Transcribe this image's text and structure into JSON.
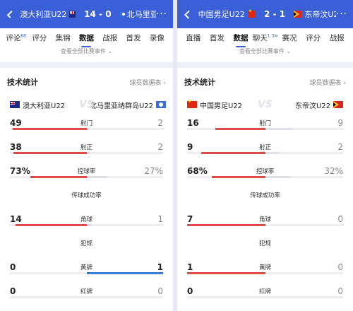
{
  "panels": [
    {
      "team_a": "澳大利亚U22",
      "team_b": "北马里亚纳...",
      "score": "14 - 0",
      "tabs": [
        {
          "label": "评论",
          "badge": "68"
        },
        {
          "label": "评分",
          "badge": ""
        },
        {
          "label": "集锦",
          "badge": ""
        },
        {
          "label": "数据",
          "badge": ""
        },
        {
          "label": "战报",
          "badge": ""
        },
        {
          "label": "首发",
          "badge": ""
        },
        {
          "label": "录像",
          "badge": ""
        }
      ],
      "active_tab": 3,
      "events_link": "查看全部比赛事件 ⌄",
      "section_title": "技术统计",
      "player_link": "球员数据表 ›",
      "team_a_full": "澳大利亚U22",
      "team_b_full": "北马里亚纳群岛U22",
      "vs": "VS",
      "stats": [
        {
          "label": "射门",
          "left": "49",
          "right": "2",
          "lfrac": 0.96,
          "rfrac": 0.04
        },
        {
          "label": "射正",
          "left": "38",
          "right": "2",
          "lfrac": 0.95,
          "rfrac": 0.05
        },
        {
          "label": "控球率",
          "left": "73%",
          "right": "27%",
          "lfrac": 0.73,
          "rfrac": 0.27
        },
        {
          "label": "传球成功率",
          "left": "",
          "right": "",
          "lfrac": null,
          "rfrac": null
        },
        {
          "label": "角球",
          "left": "14",
          "right": "1",
          "lfrac": 0.93,
          "rfrac": 0.07
        },
        {
          "label": "犯规",
          "left": "",
          "right": "",
          "lfrac": null,
          "rfrac": null
        },
        {
          "label": "黄牌",
          "left": "0",
          "right": "1",
          "lfrac": 0.0,
          "rfrac": 1.0,
          "rblue": true
        },
        {
          "label": "红牌",
          "left": "0",
          "right": "0",
          "lfrac": 0.0,
          "rfrac": 0.0
        }
      ]
    },
    {
      "team_a": "中国男足U22",
      "team_b": "东帝汶U22",
      "score": "2 - 1",
      "tabs": [
        {
          "label": "直播",
          "badge": ""
        },
        {
          "label": "首发",
          "badge": ""
        },
        {
          "label": "数据",
          "badge": ""
        },
        {
          "label": "聊天",
          "badge": "1.3w"
        },
        {
          "label": "赛况",
          "badge": ""
        },
        {
          "label": "评分",
          "badge": ""
        },
        {
          "label": "战报",
          "badge": ""
        }
      ],
      "active_tab": 2,
      "events_link": "查看全部比赛事件 ⌄",
      "section_title": "技术统计",
      "player_link": "球员数据表 ›",
      "team_a_full": "中国男足U22",
      "team_b_full": "东帝汶U22",
      "vs": "VS",
      "stats": [
        {
          "label": "射门",
          "left": "16",
          "right": "9",
          "lfrac": 0.64,
          "rfrac": 0.36
        },
        {
          "label": "射正",
          "left": "9",
          "right": "2",
          "lfrac": 0.82,
          "rfrac": 0.18
        },
        {
          "label": "控球率",
          "left": "68%",
          "right": "32%",
          "lfrac": 0.68,
          "rfrac": 0.32
        },
        {
          "label": "传球成功率",
          "left": "",
          "right": "",
          "lfrac": null,
          "rfrac": null
        },
        {
          "label": "角球",
          "left": "7",
          "right": "0",
          "lfrac": 1.0,
          "rfrac": 0.0
        },
        {
          "label": "犯规",
          "left": "",
          "right": "",
          "lfrac": null,
          "rfrac": null
        },
        {
          "label": "黄牌",
          "left": "1",
          "right": "0",
          "lfrac": 1.0,
          "rfrac": 0.0
        },
        {
          "label": "红牌",
          "left": "0",
          "right": "0",
          "lfrac": 0.0,
          "rfrac": 0.0
        }
      ]
    }
  ]
}
